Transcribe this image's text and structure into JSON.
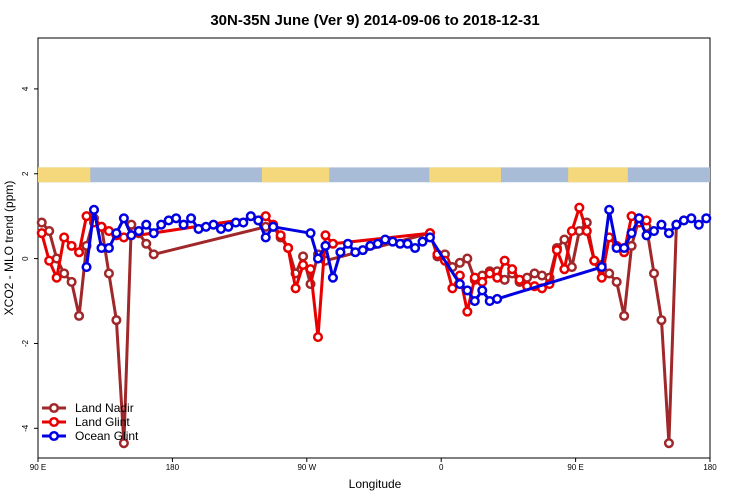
{
  "chart_data": {
    "type": "line",
    "title": "30N-35N June (Ver 9)   2014-09-06 to 2018-12-31",
    "xlabel": "Longitude",
    "ylabel": "XCO2 - MLO trend (ppm)",
    "x_ticks": [
      {
        "value": 0,
        "label": "90 E"
      },
      {
        "value": 90,
        "label": "180"
      },
      {
        "value": 180,
        "label": "90 W"
      },
      {
        "value": 270,
        "label": "0"
      },
      {
        "value": 360,
        "label": "90 E"
      },
      {
        "value": 450,
        "label": "180"
      }
    ],
    "y_ticks": [
      {
        "value": -4,
        "label": "-4"
      },
      {
        "value": -2,
        "label": "-2"
      },
      {
        "value": 0,
        "label": "0"
      },
      {
        "value": 2,
        "label": "2"
      },
      {
        "value": 4,
        "label": "4"
      }
    ],
    "xlim": [
      0,
      450
    ],
    "ylim": [
      -4.7,
      5.2
    ],
    "legend_position": "bottom-left",
    "land_ocean_strip": {
      "y_range": [
        1.8,
        2.15
      ],
      "ocean_color": "#a8bcd8",
      "land_color": "#f5d77c",
      "land_segments": [
        [
          0,
          35
        ],
        [
          150,
          195
        ],
        [
          262,
          310
        ],
        [
          355,
          395
        ],
        [
          450,
          450
        ]
      ]
    },
    "series": [
      {
        "name": "Land Nadir",
        "color": "#a0282a",
        "x": [
          2.5,
          7.5,
          12.5,
          17.5,
          22.5,
          27.5,
          32.5,
          37.5,
          42.5,
          47.5,
          52.5,
          57.5,
          62.5,
          67.5,
          72.5,
          77.5,
          152.5,
          157.5,
          162.5,
          167.5,
          172.5,
          177.5,
          182.5,
          187.5,
          192.5,
          262.5,
          267.5,
          272.5,
          277.5,
          282.5,
          287.5,
          292.5,
          297.5,
          302.5,
          307.5,
          312.5,
          317.5,
          322.5,
          327.5,
          332.5,
          337.5,
          342.5,
          347.5,
          352.5,
          357.5,
          362.5,
          367.5,
          372.5,
          377.5,
          382.5,
          387.5,
          392.5,
          397.5,
          402.5,
          407.5,
          412.5,
          417.5,
          422.5,
          427.5
        ],
        "y": [
          0.85,
          0.65,
          0.0,
          -0.35,
          -0.55,
          -1.35,
          0.3,
          0.95,
          0.75,
          -0.35,
          -1.45,
          -4.35,
          0.8,
          0.6,
          0.35,
          0.1,
          0.75,
          0.75,
          0.5,
          0.25,
          -0.35,
          0.05,
          -0.6,
          0.1,
          -0.05,
          0.6,
          0.05,
          0.1,
          -0.2,
          -0.1,
          0.0,
          -0.5,
          -0.4,
          -0.3,
          -0.3,
          -0.5,
          -0.35,
          -0.55,
          -0.45,
          -0.35,
          -0.4,
          -0.45,
          0.25,
          0.45,
          -0.2,
          0.65,
          0.85,
          -0.05,
          -0.15,
          -0.35,
          -0.55,
          -1.35,
          0.3,
          0.95,
          0.75,
          -0.35,
          -1.45,
          -4.35,
          0.8
        ]
      },
      {
        "name": "Land Glint",
        "color": "#e80000",
        "x": [
          2.5,
          7.5,
          12.5,
          17.5,
          22.5,
          27.5,
          32.5,
          37.5,
          42.5,
          47.5,
          52.5,
          57.5,
          152.5,
          157.5,
          162.5,
          167.5,
          172.5,
          177.5,
          182.5,
          187.5,
          192.5,
          197.5,
          262.5,
          267.5,
          272.5,
          277.5,
          282.5,
          287.5,
          292.5,
          297.5,
          302.5,
          307.5,
          312.5,
          317.5,
          322.5,
          327.5,
          332.5,
          337.5,
          342.5,
          347.5,
          352.5,
          357.5,
          362.5,
          367.5,
          372.5,
          377.5,
          382.5,
          387.5,
          392.5,
          397.5,
          402.5,
          407.5
        ],
        "y": [
          0.6,
          -0.05,
          -0.45,
          0.5,
          0.3,
          0.15,
          1.0,
          0.85,
          0.75,
          0.65,
          0.55,
          0.5,
          1.0,
          0.8,
          0.55,
          0.25,
          -0.7,
          -0.15,
          -0.25,
          -1.85,
          0.55,
          0.35,
          0.6,
          0.1,
          -0.05,
          -0.7,
          -0.4,
          -1.25,
          -0.45,
          -0.55,
          -0.35,
          -0.45,
          -0.05,
          -0.25,
          -0.5,
          -0.65,
          -0.65,
          -0.7,
          -0.6,
          0.2,
          -0.25,
          0.65,
          1.2,
          0.65,
          -0.05,
          -0.45,
          0.5,
          0.3,
          0.15,
          1.0,
          0.85,
          0.9
        ]
      },
      {
        "name": "Ocean Glint",
        "color": "#0000e0",
        "x": [
          32.5,
          37.5,
          42.5,
          47.5,
          52.5,
          57.5,
          62.5,
          67.5,
          72.5,
          77.5,
          82.5,
          87.5,
          92.5,
          97.5,
          102.5,
          107.5,
          112.5,
          117.5,
          122.5,
          127.5,
          132.5,
          137.5,
          142.5,
          147.5,
          152.5,
          157.5,
          182.5,
          187.5,
          192.5,
          197.5,
          202.5,
          207.5,
          212.5,
          217.5,
          222.5,
          227.5,
          232.5,
          237.5,
          242.5,
          247.5,
          252.5,
          257.5,
          262.5,
          282.5,
          287.5,
          292.5,
          297.5,
          302.5,
          307.5,
          377.5,
          382.5,
          387.5,
          392.5,
          397.5,
          402.5,
          407.5,
          412.5,
          417.5,
          422.5,
          427.5,
          432.5,
          437.5,
          442.5,
          447.5
        ],
        "y": [
          -0.2,
          1.15,
          0.25,
          0.25,
          0.6,
          0.95,
          0.55,
          0.65,
          0.8,
          0.6,
          0.8,
          0.9,
          0.95,
          0.8,
          0.95,
          0.7,
          0.75,
          0.8,
          0.7,
          0.75,
          0.85,
          0.85,
          1.0,
          0.9,
          0.5,
          0.75,
          0.6,
          0.0,
          0.3,
          -0.45,
          0.15,
          0.35,
          0.15,
          0.2,
          0.3,
          0.35,
          0.45,
          0.4,
          0.35,
          0.35,
          0.25,
          0.4,
          0.5,
          -0.6,
          -0.75,
          -1.0,
          -0.75,
          -1.0,
          -0.95,
          -0.2,
          1.15,
          0.25,
          0.25,
          0.6,
          0.95,
          0.55,
          0.65,
          0.8,
          0.6,
          0.8,
          0.9,
          0.95,
          0.8,
          0.95
        ]
      }
    ]
  }
}
